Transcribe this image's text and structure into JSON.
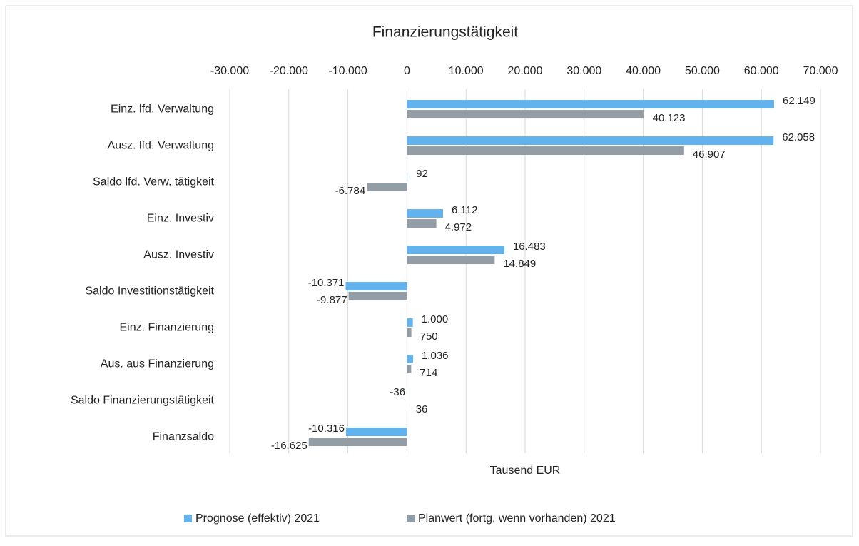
{
  "chart_data": {
    "type": "bar",
    "orientation": "horizontal",
    "title": "Finanzierungstätigkeit",
    "x_label": "Tausend EUR",
    "categories": [
      "Einz. lfd. Verwaltung",
      "Ausz. lfd. Verwaltung",
      "Saldo lfd. Verw. tätigkeit",
      "Einz. Investiv",
      "Ausz. Investiv",
      "Saldo Investitionstätigkeit",
      "Einz. Finanzierung",
      "Aus. aus Finanzierung",
      "Saldo Finanzierungstätigkeit",
      "Finanzsaldo"
    ],
    "series": [
      {
        "name": "Prognose (effektiv) 2021",
        "color": "#62b2ee",
        "values": [
          62149,
          62058,
          92,
          6112,
          16483,
          -10371,
          1000,
          1036,
          -36,
          -10316
        ],
        "value_labels": [
          "62.149",
          "62.058",
          "92",
          "6.112",
          "16.483",
          "-10.371",
          "1.000",
          "1.036",
          "-36",
          "-10.316"
        ]
      },
      {
        "name": "Planwert (fortg. wenn vorhanden) 2021",
        "color": "#929da5",
        "values": [
          40123,
          46907,
          -6784,
          4972,
          14849,
          -9877,
          750,
          714,
          36,
          -16625
        ],
        "value_labels": [
          "40.123",
          "46.907",
          "-6.784",
          "4.972",
          "14.849",
          "-9.877",
          "750",
          "714",
          "36",
          "-16.625"
        ]
      }
    ],
    "xlim": [
      -30000,
      70000
    ],
    "xticks": [
      {
        "value": -30000,
        "label": "-30.000"
      },
      {
        "value": -20000,
        "label": "-20.000"
      },
      {
        "value": -10000,
        "label": "-10.000"
      },
      0,
      {
        "value": 10000,
        "label": "10.000"
      },
      {
        "value": 20000,
        "label": "20.000"
      },
      {
        "value": 30000,
        "label": "30.000"
      },
      {
        "value": 40000,
        "label": "40.000"
      },
      {
        "value": 50000,
        "label": "50.000"
      },
      {
        "value": 60000,
        "label": "60.000"
      },
      {
        "value": 70000,
        "label": "70.000"
      }
    ],
    "grid": true,
    "legend": "bottom"
  }
}
